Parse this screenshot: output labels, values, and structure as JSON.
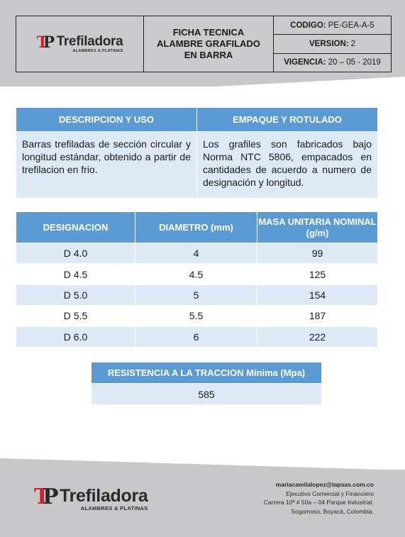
{
  "header": {
    "logo": {
      "name": "Trefiladora",
      "subtitle": "ALAMBRES & PLATINAS"
    },
    "title_lines": [
      "FICHA TECNICA",
      "ALAMBRE GRAFILADO",
      "EN BARRA"
    ],
    "codigo": {
      "label": "CODIGO:",
      "value": "PE-GEA-A-5"
    },
    "version": {
      "label": "VERSION:",
      "value": "2"
    },
    "vigencia": {
      "label": "VIGENCIA:",
      "value": "20 – 05 - 2019"
    }
  },
  "descripcion": {
    "headers": [
      "DESCRIPCION Y USO",
      "EMPAQUE Y ROTULADO"
    ],
    "texts": [
      "Barras trefiladas de sección circular y longitud estándar, obtenido a partir de trefilacion en frio.",
      "Los grafiles son fabricados bajo Norma NTC 5806, empacados en cantidades de acuerdo a numero de designación y longitud."
    ]
  },
  "specs": {
    "headers": [
      "DESIGNACION",
      "DIAMETRO (mm)",
      "MASA UNITARIA NOMINAL (g/m)"
    ],
    "rows": [
      [
        "D 4.0",
        "4",
        "99"
      ],
      [
        "D 4.5",
        "4.5",
        "125"
      ],
      [
        "D 5.0",
        "5",
        "154"
      ],
      [
        "D 5.5",
        "5.5",
        "187"
      ],
      [
        "D 6.0",
        "6",
        "222"
      ]
    ]
  },
  "resistencia": {
    "header": "RESISTENCIA A LA TRACCION Mínima (Mpa)",
    "value": "585"
  },
  "footer": {
    "logo": {
      "name": "Trefiladora",
      "subtitle": "ALAMBRES & PLATINAS"
    },
    "email": "mariacamilalopez@tapsas.com.co",
    "role": "Ejecutivo Comercial y Financiero",
    "address": "Carrera 10ª # 50a – 04 Parque Industrial.",
    "city": "Sogamoso, Boyacá, Colombia."
  }
}
